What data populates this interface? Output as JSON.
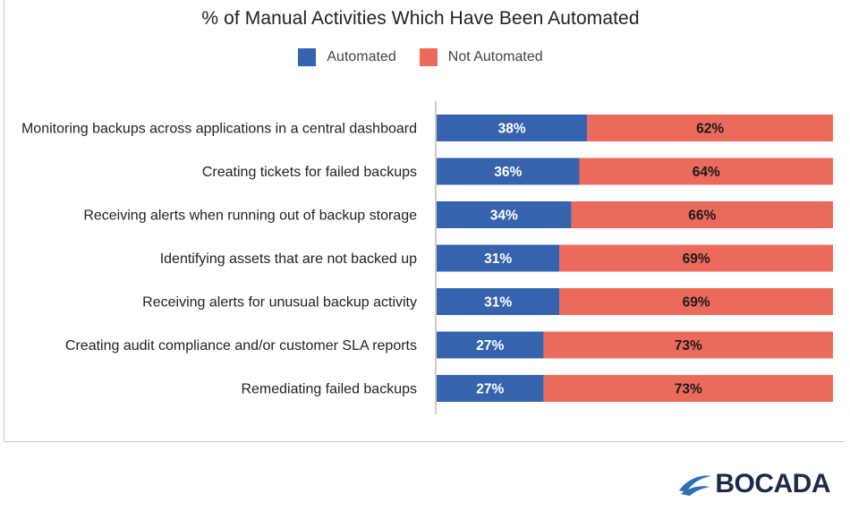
{
  "chart_data": {
    "type": "bar",
    "orientation": "horizontal",
    "stacked": true,
    "title": "% of Manual Activities Which Have Been Automated",
    "categories": [
      "Monitoring backups across applications in a central dashboard",
      "Creating tickets for failed backups",
      "Receiving alerts when running out of backup storage",
      "Identifying assets that are not backed up",
      "Receiving alerts for unusual backup activity",
      "Creating audit compliance and/or customer SLA reports",
      "Remediating failed backups"
    ],
    "series": [
      {
        "name": "Automated",
        "color": "#3563ad",
        "values": [
          38,
          36,
          34,
          31,
          31,
          27,
          27
        ]
      },
      {
        "name": "Not Automated",
        "color": "#ec6a5c",
        "values": [
          62,
          64,
          66,
          69,
          69,
          73,
          73
        ]
      }
    ],
    "value_suffix": "%",
    "xlim": [
      0,
      100
    ],
    "legend_position": "top-center",
    "grid": false
  },
  "logo": {
    "text": "BOCADA",
    "mark_color": "#2f6fb5"
  }
}
